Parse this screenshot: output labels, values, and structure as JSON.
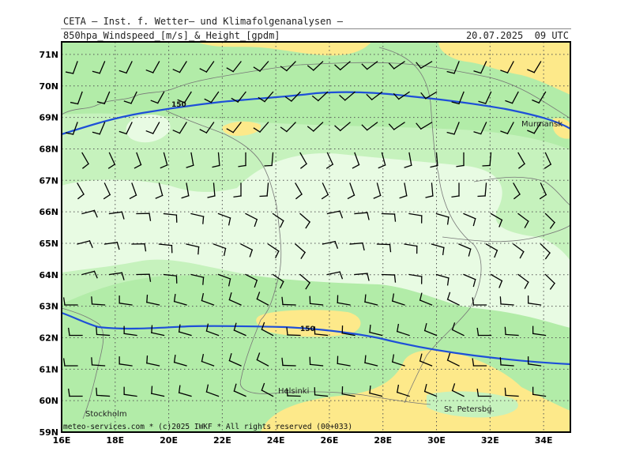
{
  "header": {
    "organization": "CETA — Inst. f. Wetter— und Klimafolgenanalysen —",
    "product": "850hpa_Windspeed_[m/s]_&_Height_[gpdm]",
    "valid_time": "20.07.2025  09 UTC"
  },
  "map": {
    "lon_labels": [
      "16E",
      "18E",
      "20E",
      "22E",
      "24E",
      "26E",
      "28E",
      "30E",
      "32E",
      "34E"
    ],
    "lat_labels": [
      "59N",
      "60N",
      "61N",
      "62N",
      "63N",
      "64N",
      "65N",
      "66N",
      "67N",
      "68N",
      "69N",
      "70N",
      "71N"
    ],
    "places": {
      "murmansk": "Murmansk",
      "helsinki": "Helsinki",
      "stockholm": "Stockholm",
      "st_petersburg": "St. Petersbg."
    },
    "contour_label_north": "150",
    "contour_label_south": "150",
    "credit": "meteo-services.com * (c)2025 IWKF * All rights reserved (00+033)",
    "colors": {
      "wind_very_light": "#e8fbe3",
      "wind_light": "#c6f2bd",
      "wind_medium": "#b2eca8",
      "wind_strong": "#fde98a",
      "height_contour": "#1e4fd8",
      "barbs": "#000000",
      "coastline": "#777777",
      "grid": "#555555"
    }
  }
}
